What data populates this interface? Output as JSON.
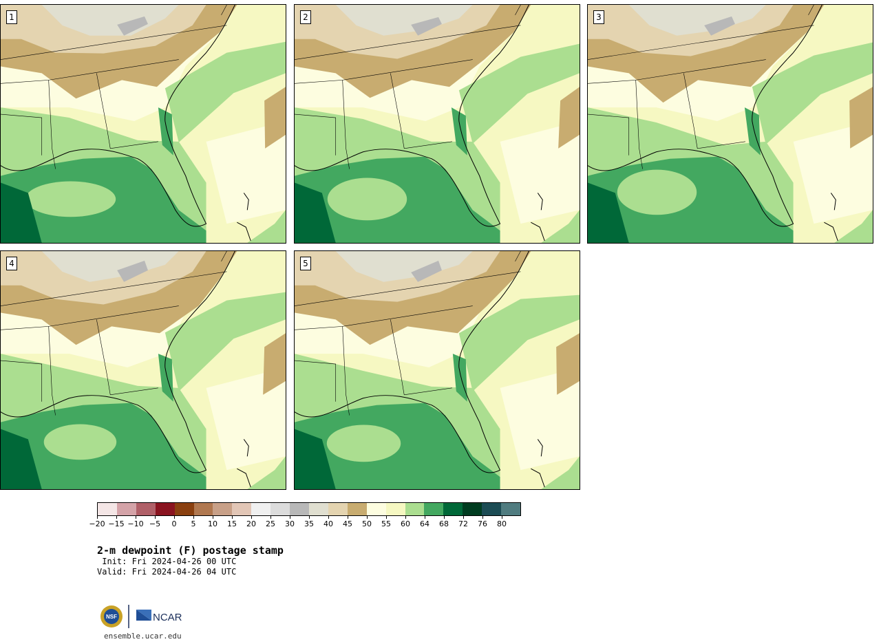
{
  "panels": [
    {
      "label": "1"
    },
    {
      "label": "2"
    },
    {
      "label": "3"
    },
    {
      "label": "4"
    },
    {
      "label": "5"
    }
  ],
  "colorbar": {
    "colors": [
      "#f4e6e6",
      "#d4a3a8",
      "#b06068",
      "#8a1420",
      "#8a4010",
      "#b07850",
      "#c8a088",
      "#e2c6b6",
      "#f0f0f0",
      "#dcdcdc",
      "#b8b8b8",
      "#e0dfd0",
      "#e4d4b0",
      "#c8ac70",
      "#fdfde0",
      "#f6f8c2",
      "#abde90",
      "#43a860",
      "#006838",
      "#003c20",
      "#1c4c54",
      "#507c80"
    ],
    "ticks": [
      "−20",
      "−15",
      "−10",
      "−5",
      "0",
      "5",
      "10",
      "15",
      "20",
      "25",
      "30",
      "35",
      "40",
      "45",
      "50",
      "55",
      "60",
      "64",
      "68",
      "72",
      "76",
      "80"
    ]
  },
  "header": {
    "title": "2-m dewpoint (F) postage stamp",
    "init": " Init: Fri 2024-04-26 00 UTC",
    "valid": "Valid: Fri 2024-04-26 04 UTC"
  },
  "footer": {
    "url": "ensemble.ucar.edu",
    "ncar_text": "NCAR",
    "nsf_text": "NSF"
  }
}
